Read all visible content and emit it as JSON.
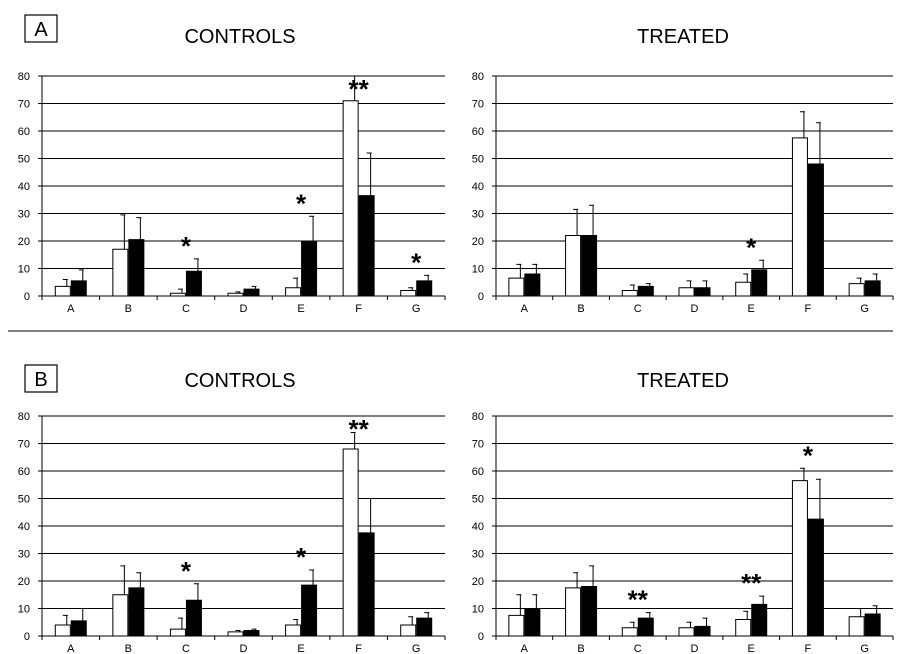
{
  "panels": [
    {
      "label": "A"
    },
    {
      "label": "B"
    }
  ],
  "chart_data": [
    {
      "type": "bar",
      "panel": "A",
      "title": "CONTROLS",
      "categories": [
        "A",
        "B",
        "C",
        "D",
        "E",
        "F",
        "G"
      ],
      "ylim": [
        0,
        80
      ],
      "yticks": [
        0,
        10,
        20,
        30,
        40,
        50,
        60,
        70,
        80
      ],
      "grid": true,
      "series": [
        {
          "color": "#ffffff",
          "values": [
            3.5,
            17,
            1,
            1,
            3,
            71,
            2
          ],
          "errors": [
            2.5,
            12.5,
            1.5,
            0.5,
            3.5,
            9,
            1
          ]
        },
        {
          "color": "#000000",
          "values": [
            5.5,
            20.5,
            9,
            2.5,
            20,
            36.5,
            5.5
          ],
          "errors": [
            4,
            8,
            4.5,
            1,
            9,
            15.5,
            2
          ]
        }
      ],
      "annotations": [
        {
          "category": "C",
          "text": "*"
        },
        {
          "category": "E",
          "text": "*"
        },
        {
          "category": "F",
          "text": "**"
        },
        {
          "category": "G",
          "text": "*"
        }
      ]
    },
    {
      "type": "bar",
      "panel": "A",
      "title": "TREATED",
      "categories": [
        "A",
        "B",
        "C",
        "D",
        "E",
        "F",
        "G"
      ],
      "ylim": [
        0,
        80
      ],
      "yticks": [
        0,
        10,
        20,
        30,
        40,
        50,
        60,
        70,
        80
      ],
      "grid": true,
      "series": [
        {
          "color": "#ffffff",
          "values": [
            6.5,
            22,
            2,
            3,
            5,
            57.5,
            4.5
          ],
          "errors": [
            5,
            9.5,
            2,
            2.5,
            3,
            9.5,
            2
          ]
        },
        {
          "color": "#000000",
          "values": [
            8,
            22,
            3.5,
            3,
            9.5,
            48,
            5.5
          ],
          "errors": [
            3.5,
            11,
            1,
            2.5,
            3.5,
            15,
            2.5
          ]
        }
      ],
      "annotations": [
        {
          "category": "E",
          "text": "*"
        }
      ]
    },
    {
      "type": "bar",
      "panel": "B",
      "title": "CONTROLS",
      "categories": [
        "A",
        "B",
        "C",
        "D",
        "E",
        "F",
        "G"
      ],
      "ylim": [
        0,
        80
      ],
      "yticks": [
        0,
        10,
        20,
        30,
        40,
        50,
        60,
        70,
        80
      ],
      "grid": true,
      "series": [
        {
          "color": "#ffffff",
          "values": [
            4,
            15,
            2.5,
            1.5,
            4,
            68,
            4
          ],
          "errors": [
            3.5,
            10.5,
            4,
            0.5,
            2,
            6,
            3
          ]
        },
        {
          "color": "#000000",
          "values": [
            5.5,
            17.5,
            13,
            2,
            18.5,
            37.5,
            6.5
          ],
          "errors": [
            4.5,
            5.5,
            6,
            0.5,
            5.5,
            12.5,
            2
          ]
        }
      ],
      "annotations": [
        {
          "category": "C",
          "text": "*"
        },
        {
          "category": "E",
          "text": "*"
        },
        {
          "category": "F",
          "text": "**"
        }
      ]
    },
    {
      "type": "bar",
      "panel": "B",
      "title": "TREATED",
      "categories": [
        "A",
        "B",
        "C",
        "D",
        "E",
        "F",
        "G"
      ],
      "ylim": [
        0,
        80
      ],
      "yticks": [
        0,
        10,
        20,
        30,
        40,
        50,
        60,
        70,
        80
      ],
      "grid": true,
      "series": [
        {
          "color": "#ffffff",
          "values": [
            7.5,
            17.5,
            3,
            3,
            6,
            56.5,
            7
          ],
          "errors": [
            7.5,
            5.5,
            2,
            2,
            3,
            4.5,
            3
          ]
        },
        {
          "color": "#000000",
          "values": [
            10,
            18,
            6.5,
            3.5,
            11.5,
            42.5,
            8
          ],
          "errors": [
            5,
            7.5,
            2,
            3,
            3,
            14.5,
            3
          ]
        }
      ],
      "annotations": [
        {
          "category": "C",
          "text": "**"
        },
        {
          "category": "E",
          "text": "**"
        },
        {
          "category": "F",
          "text": "*"
        }
      ]
    }
  ]
}
